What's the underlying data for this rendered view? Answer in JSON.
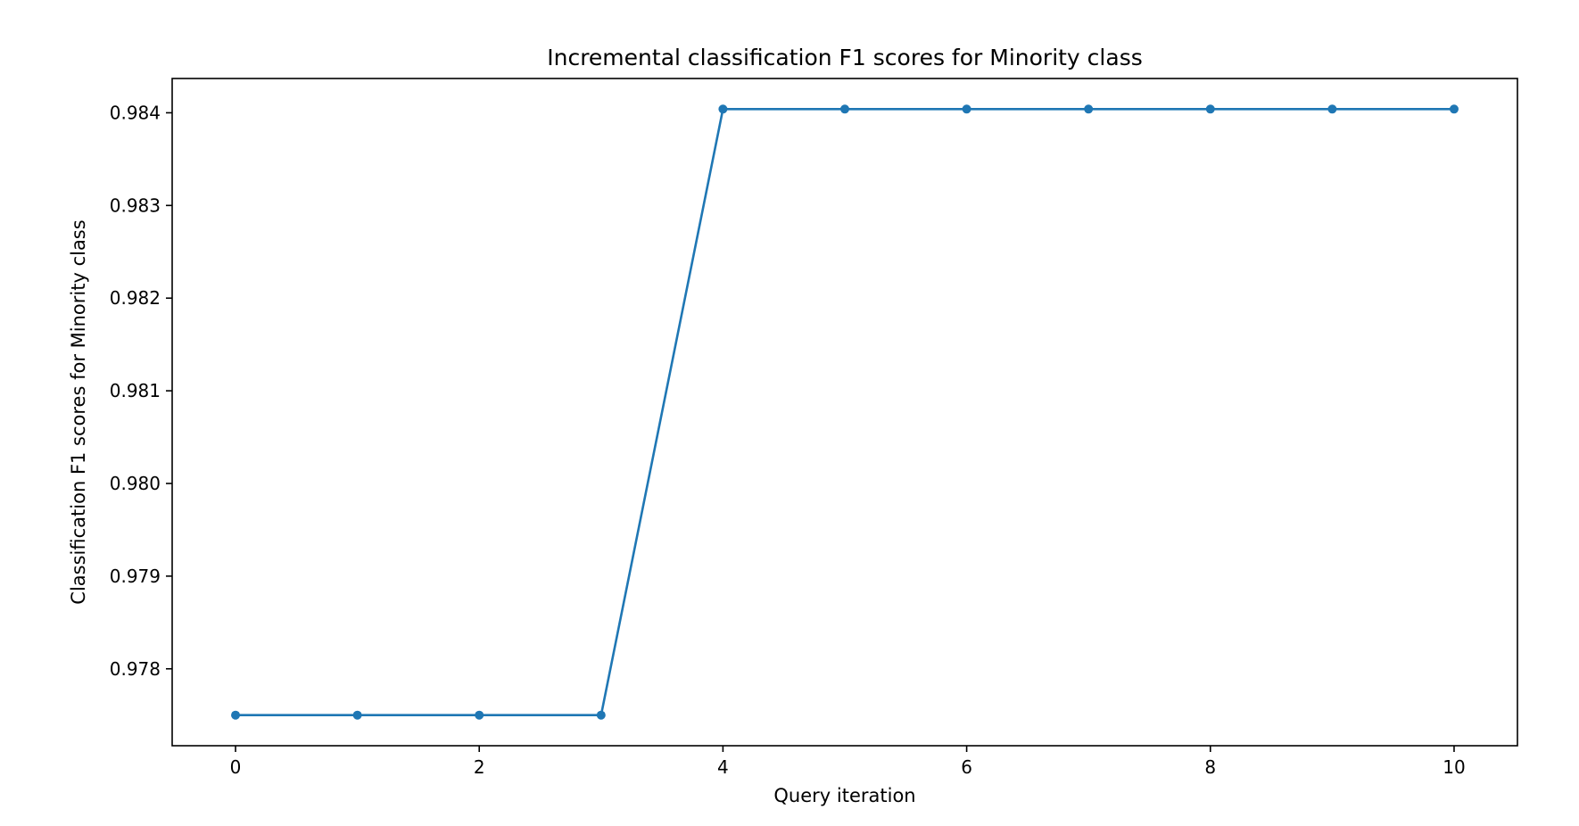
{
  "chart_data": {
    "type": "line",
    "title": "Incremental classification F1 scores for Minority class",
    "xlabel": "Query iteration",
    "ylabel": "Classification F1 scores for Minority class",
    "x": [
      0,
      1,
      2,
      3,
      4,
      5,
      6,
      7,
      8,
      9,
      10
    ],
    "series": [
      {
        "values": [
          0.9775,
          0.9775,
          0.9775,
          0.9775,
          0.98404,
          0.98404,
          0.98404,
          0.98404,
          0.98404,
          0.98404,
          0.98404
        ],
        "color": "#1f77b4",
        "marker": "circle"
      }
    ],
    "xlim": [
      -0.52,
      10.52
    ],
    "ylim": [
      0.97717,
      0.98437
    ],
    "xticks": [
      0,
      2,
      4,
      6,
      8,
      10
    ],
    "xtick_labels": [
      "0",
      "2",
      "4",
      "6",
      "8",
      "10"
    ],
    "yticks": [
      0.978,
      0.979,
      0.98,
      0.981,
      0.982,
      0.983,
      0.984
    ],
    "ytick_labels": [
      "0.978",
      "0.979",
      "0.980",
      "0.981",
      "0.982",
      "0.983",
      "0.984"
    ],
    "grid": false,
    "legend": false
  }
}
